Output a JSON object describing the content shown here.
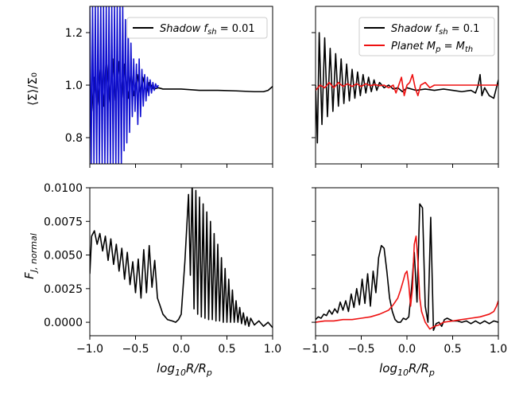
{
  "chart_data": [
    {
      "type": "line",
      "panel": "top-left",
      "ylabel": "⟨Σ⟩/Σ₀",
      "xlim": [
        -1.0,
        1.0
      ],
      "ylim": [
        0.7,
        1.3
      ],
      "yticks": [
        0.8,
        1.0,
        1.2
      ],
      "ytick_labels": [
        "0.8",
        "1.0",
        "1.2"
      ],
      "legend_position": "top-right",
      "series": [
        {
          "name": "Shadow  f_sh = 0.01",
          "legend": "Shadow  f",
          "legend_sub": "sh",
          "legend_tail": " = 0.01",
          "color": "#000000",
          "x": [
            -1.0,
            -0.98,
            -0.95,
            -0.92,
            -0.88,
            -0.85,
            -0.82,
            -0.78,
            -0.75,
            -0.72,
            -0.68,
            -0.65,
            -0.62,
            -0.58,
            -0.55,
            -0.52,
            -0.48,
            -0.45,
            -0.42,
            -0.38,
            -0.35,
            -0.3,
            -0.25,
            -0.2,
            -0.1,
            0.0,
            0.2,
            0.4,
            0.6,
            0.8,
            0.9,
            0.95,
            1.0
          ],
          "y": [
            1.02,
            0.9,
            1.03,
            0.92,
            1.08,
            0.92,
            1.1,
            0.93,
            1.1,
            0.94,
            1.09,
            0.95,
            1.08,
            0.95,
            1.05,
            0.96,
            1.04,
            0.97,
            1.03,
            0.97,
            1.01,
            0.985,
            0.99,
            0.985,
            0.985,
            0.985,
            0.98,
            0.98,
            0.978,
            0.975,
            0.975,
            0.98,
            0.995
          ]
        },
        {
          "name": "blue oscillation",
          "color": "#1010d0",
          "x": [
            -1.0,
            -0.985,
            -0.97,
            -0.955,
            -0.94,
            -0.925,
            -0.91,
            -0.895,
            -0.88,
            -0.865,
            -0.85,
            -0.835,
            -0.82,
            -0.805,
            -0.79,
            -0.775,
            -0.76,
            -0.745,
            -0.73,
            -0.715,
            -0.7,
            -0.685,
            -0.67,
            -0.655,
            -0.64,
            -0.625,
            -0.61,
            -0.595,
            -0.58,
            -0.565,
            -0.55,
            -0.535,
            -0.52,
            -0.505,
            -0.49,
            -0.475,
            -0.46,
            -0.445,
            -0.43,
            -0.415,
            -0.4,
            -0.385,
            -0.37,
            -0.355,
            -0.34,
            -0.325,
            -0.31,
            -0.295,
            -0.28,
            -0.265,
            -0.25
          ],
          "y": [
            1.3,
            0.7,
            1.3,
            0.7,
            1.3,
            0.7,
            1.3,
            0.7,
            1.3,
            0.7,
            1.3,
            0.7,
            1.3,
            0.7,
            1.3,
            0.7,
            1.3,
            0.7,
            1.3,
            0.7,
            1.3,
            0.7,
            1.3,
            0.7,
            1.3,
            0.75,
            1.25,
            0.78,
            1.22,
            0.82,
            1.16,
            0.88,
            1.1,
            0.9,
            1.08,
            0.85,
            1.1,
            0.88,
            1.06,
            0.92,
            1.04,
            0.94,
            1.03,
            0.96,
            1.02,
            0.97,
            1.01,
            0.98,
            1.005,
            0.99,
            1.0
          ]
        }
      ]
    },
    {
      "type": "line",
      "panel": "top-right",
      "xlim": [
        -1.0,
        1.0
      ],
      "ylim": [
        0.7,
        1.3
      ],
      "legend_position": "top-right",
      "series": [
        {
          "name": "Shadow  f_sh = 0.1",
          "legend": "Shadow  f",
          "legend_sub": "sh",
          "legend_tail": " = 0.1",
          "color": "#000000",
          "x": [
            -1.0,
            -0.98,
            -0.96,
            -0.93,
            -0.9,
            -0.87,
            -0.84,
            -0.81,
            -0.78,
            -0.75,
            -0.72,
            -0.69,
            -0.66,
            -0.63,
            -0.6,
            -0.57,
            -0.54,
            -0.51,
            -0.48,
            -0.45,
            -0.42,
            -0.39,
            -0.36,
            -0.33,
            -0.3,
            -0.25,
            -0.2,
            -0.15,
            -0.1,
            -0.05,
            0.0,
            0.1,
            0.2,
            0.3,
            0.4,
            0.5,
            0.6,
            0.7,
            0.75,
            0.78,
            0.8,
            0.82,
            0.85,
            0.9,
            0.95,
            1.0
          ],
          "y": [
            1.0,
            0.78,
            1.2,
            0.85,
            1.18,
            0.88,
            1.14,
            0.9,
            1.12,
            0.92,
            1.1,
            0.93,
            1.08,
            0.94,
            1.06,
            0.95,
            1.05,
            0.96,
            1.04,
            0.97,
            1.03,
            0.975,
            1.02,
            0.98,
            1.01,
            0.99,
            1.0,
            0.985,
            0.99,
            0.975,
            0.99,
            0.98,
            0.985,
            0.98,
            0.985,
            0.98,
            0.975,
            0.98,
            0.97,
            1.0,
            1.04,
            0.96,
            0.99,
            0.96,
            0.95,
            1.02
          ]
        },
        {
          "name": "Planet  M_p = M_th",
          "legend": "Planet  M",
          "legend_sub": "p",
          "legend_mid": " = M",
          "legend_sub2": "th",
          "color": "#ee1111",
          "x": [
            -1.0,
            -0.95,
            -0.9,
            -0.85,
            -0.8,
            -0.75,
            -0.7,
            -0.65,
            -0.6,
            -0.55,
            -0.5,
            -0.45,
            -0.4,
            -0.35,
            -0.3,
            -0.25,
            -0.2,
            -0.15,
            -0.12,
            -0.09,
            -0.06,
            -0.03,
            0.0,
            0.03,
            0.06,
            0.09,
            0.12,
            0.15,
            0.2,
            0.25,
            0.3,
            0.4,
            0.5,
            0.6,
            0.7,
            0.8,
            0.9,
            1.0
          ],
          "y": [
            0.98,
            1.0,
            0.99,
            1.01,
            0.99,
            1.01,
            0.995,
            1.005,
            0.995,
            1.005,
            0.995,
            1.005,
            0.998,
            1.002,
            0.998,
            1.0,
            0.99,
            1.0,
            0.97,
            1.0,
            1.03,
            0.96,
            1.0,
            1.01,
            1.04,
            0.99,
            0.96,
            1.0,
            1.01,
            0.99,
            1.0,
            1.0,
            1.0,
            1.0,
            1.0,
            1.0,
            1.0,
            1.0
          ]
        }
      ]
    },
    {
      "type": "line",
      "panel": "bottom-left",
      "ylabel": "F",
      "ylabel_sub": "J, normal",
      "xlabel": "log",
      "xlabel_sub": "10",
      "xlabel_tail": "R/R",
      "xlabel_sub2": "p",
      "xlim": [
        -1.0,
        1.0
      ],
      "ylim": [
        -0.001,
        0.01
      ],
      "xticks": [
        -1.0,
        -0.5,
        0.0,
        0.5,
        1.0
      ],
      "xtick_labels": [
        "−1.0",
        "−0.5",
        "0.0",
        "0.5",
        "1.0"
      ],
      "yticks": [
        0.0,
        0.0025,
        0.005,
        0.0075,
        0.01
      ],
      "ytick_labels": [
        "0.0000",
        "0.0025",
        "0.0050",
        "0.0075",
        "0.0100"
      ],
      "series": [
        {
          "name": "Shadow f_sh = 0.01",
          "color": "#000000",
          "x": [
            -1.0,
            -0.98,
            -0.95,
            -0.92,
            -0.89,
            -0.86,
            -0.83,
            -0.8,
            -0.77,
            -0.74,
            -0.71,
            -0.68,
            -0.65,
            -0.62,
            -0.59,
            -0.56,
            -0.53,
            -0.5,
            -0.47,
            -0.44,
            -0.41,
            -0.38,
            -0.35,
            -0.32,
            -0.29,
            -0.26,
            -0.23,
            -0.2,
            -0.15,
            -0.1,
            -0.06,
            -0.03,
            0.0,
            0.04,
            0.08,
            0.1,
            0.12,
            0.14,
            0.16,
            0.18,
            0.2,
            0.22,
            0.24,
            0.26,
            0.28,
            0.3,
            0.32,
            0.34,
            0.36,
            0.38,
            0.4,
            0.42,
            0.44,
            0.46,
            0.48,
            0.5,
            0.52,
            0.54,
            0.56,
            0.58,
            0.6,
            0.62,
            0.64,
            0.66,
            0.68,
            0.7,
            0.72,
            0.74,
            0.76,
            0.8,
            0.85,
            0.9,
            0.95,
            1.0
          ],
          "y": [
            0.0036,
            0.0064,
            0.0068,
            0.0058,
            0.0066,
            0.0053,
            0.0064,
            0.0046,
            0.0062,
            0.0043,
            0.0058,
            0.0038,
            0.0055,
            0.0032,
            0.0052,
            0.0028,
            0.0045,
            0.0022,
            0.0047,
            0.0018,
            0.0054,
            0.0022,
            0.0057,
            0.0026,
            0.0046,
            0.0018,
            0.0012,
            0.0006,
            0.0002,
            0.0001,
            0.0,
            0.0002,
            0.0006,
            0.0045,
            0.0095,
            0.0035,
            0.0105,
            0.001,
            0.0098,
            0.0006,
            0.0093,
            0.0004,
            0.0088,
            0.0003,
            0.0082,
            0.0002,
            0.0075,
            0.0002,
            0.0066,
            0.0001,
            0.0058,
            0.0001,
            0.0048,
            0.0,
            0.004,
            0.0,
            0.0032,
            0.0,
            0.0024,
            0.0,
            0.0016,
            0.0,
            0.0011,
            -0.0001,
            0.0007,
            -0.0002,
            0.0004,
            -0.0003,
            0.0003,
            -0.0002,
            0.0001,
            -0.0003,
            0.0,
            -0.0004
          ]
        }
      ]
    },
    {
      "type": "line",
      "panel": "bottom-right",
      "xlabel": "log",
      "xlabel_sub": "10",
      "xlabel_tail": "R/R",
      "xlabel_sub2": "p",
      "xlim": [
        -1.0,
        1.0
      ],
      "ylim": [
        -0.001,
        0.01
      ],
      "xticks": [
        -1.0,
        -0.5,
        0.0,
        0.5,
        1.0
      ],
      "xtick_labels": [
        "−1.0",
        "−0.5",
        "0.0",
        "0.5",
        "1.0"
      ],
      "series": [
        {
          "name": "Shadow f_sh = 0.1",
          "color": "#000000",
          "x": [
            -1.0,
            -0.97,
            -0.94,
            -0.91,
            -0.88,
            -0.85,
            -0.82,
            -0.79,
            -0.76,
            -0.73,
            -0.7,
            -0.67,
            -0.64,
            -0.61,
            -0.58,
            -0.55,
            -0.52,
            -0.49,
            -0.46,
            -0.43,
            -0.4,
            -0.37,
            -0.34,
            -0.31,
            -0.28,
            -0.25,
            -0.22,
            -0.19,
            -0.16,
            -0.13,
            -0.1,
            -0.07,
            -0.04,
            -0.01,
            0.02,
            0.05,
            0.08,
            0.11,
            0.14,
            0.17,
            0.2,
            0.23,
            0.26,
            0.29,
            0.32,
            0.35,
            0.38,
            0.41,
            0.44,
            0.47,
            0.5,
            0.55,
            0.6,
            0.65,
            0.7,
            0.75,
            0.8,
            0.85,
            0.9,
            0.95,
            1.0
          ],
          "y": [
            0.0002,
            0.0004,
            0.0003,
            0.0006,
            0.0005,
            0.0009,
            0.0006,
            0.001,
            0.0007,
            0.0015,
            0.0009,
            0.0016,
            0.0008,
            0.0021,
            0.0011,
            0.0025,
            0.0013,
            0.0032,
            0.0014,
            0.0036,
            0.0012,
            0.0038,
            0.0022,
            0.0048,
            0.0057,
            0.0055,
            0.0038,
            0.0018,
            0.0008,
            0.0002,
            0.0,
            0.0,
            0.0003,
            0.0002,
            0.0004,
            0.0025,
            0.0052,
            0.0015,
            0.0088,
            0.0085,
            0.0012,
            0.0,
            0.0078,
            -0.0006,
            -0.0001,
            0.0,
            -0.0003,
            0.0002,
            0.0003,
            0.0002,
            0.0001,
            0.0001,
            0.0,
            0.0001,
            -0.0001,
            0.0001,
            -0.0001,
            0.0001,
            -0.0001,
            0.0001,
            0.0
          ]
        },
        {
          "name": "Planet M_p = M_th",
          "color": "#ee1111",
          "x": [
            -1.0,
            -0.9,
            -0.8,
            -0.7,
            -0.6,
            -0.5,
            -0.4,
            -0.3,
            -0.2,
            -0.15,
            -0.1,
            -0.07,
            -0.04,
            -0.02,
            0.0,
            0.02,
            0.04,
            0.06,
            0.08,
            0.1,
            0.12,
            0.14,
            0.16,
            0.18,
            0.2,
            0.25,
            0.3,
            0.35,
            0.4,
            0.5,
            0.6,
            0.7,
            0.8,
            0.9,
            0.95,
            0.98,
            1.0
          ],
          "y": [
            0.0,
            0.0001,
            0.0001,
            0.0002,
            0.0002,
            0.0003,
            0.0004,
            0.0006,
            0.0009,
            0.0013,
            0.0018,
            0.0024,
            0.0031,
            0.0036,
            0.0038,
            0.0028,
            0.0012,
            0.0025,
            0.0058,
            0.0064,
            0.0045,
            0.0018,
            0.0008,
            0.0004,
            0.0,
            -0.0005,
            -0.0003,
            -0.0002,
            0.0,
            0.0001,
            0.0002,
            0.0003,
            0.0004,
            0.0006,
            0.0008,
            0.0012,
            0.0016
          ]
        }
      ]
    }
  ]
}
